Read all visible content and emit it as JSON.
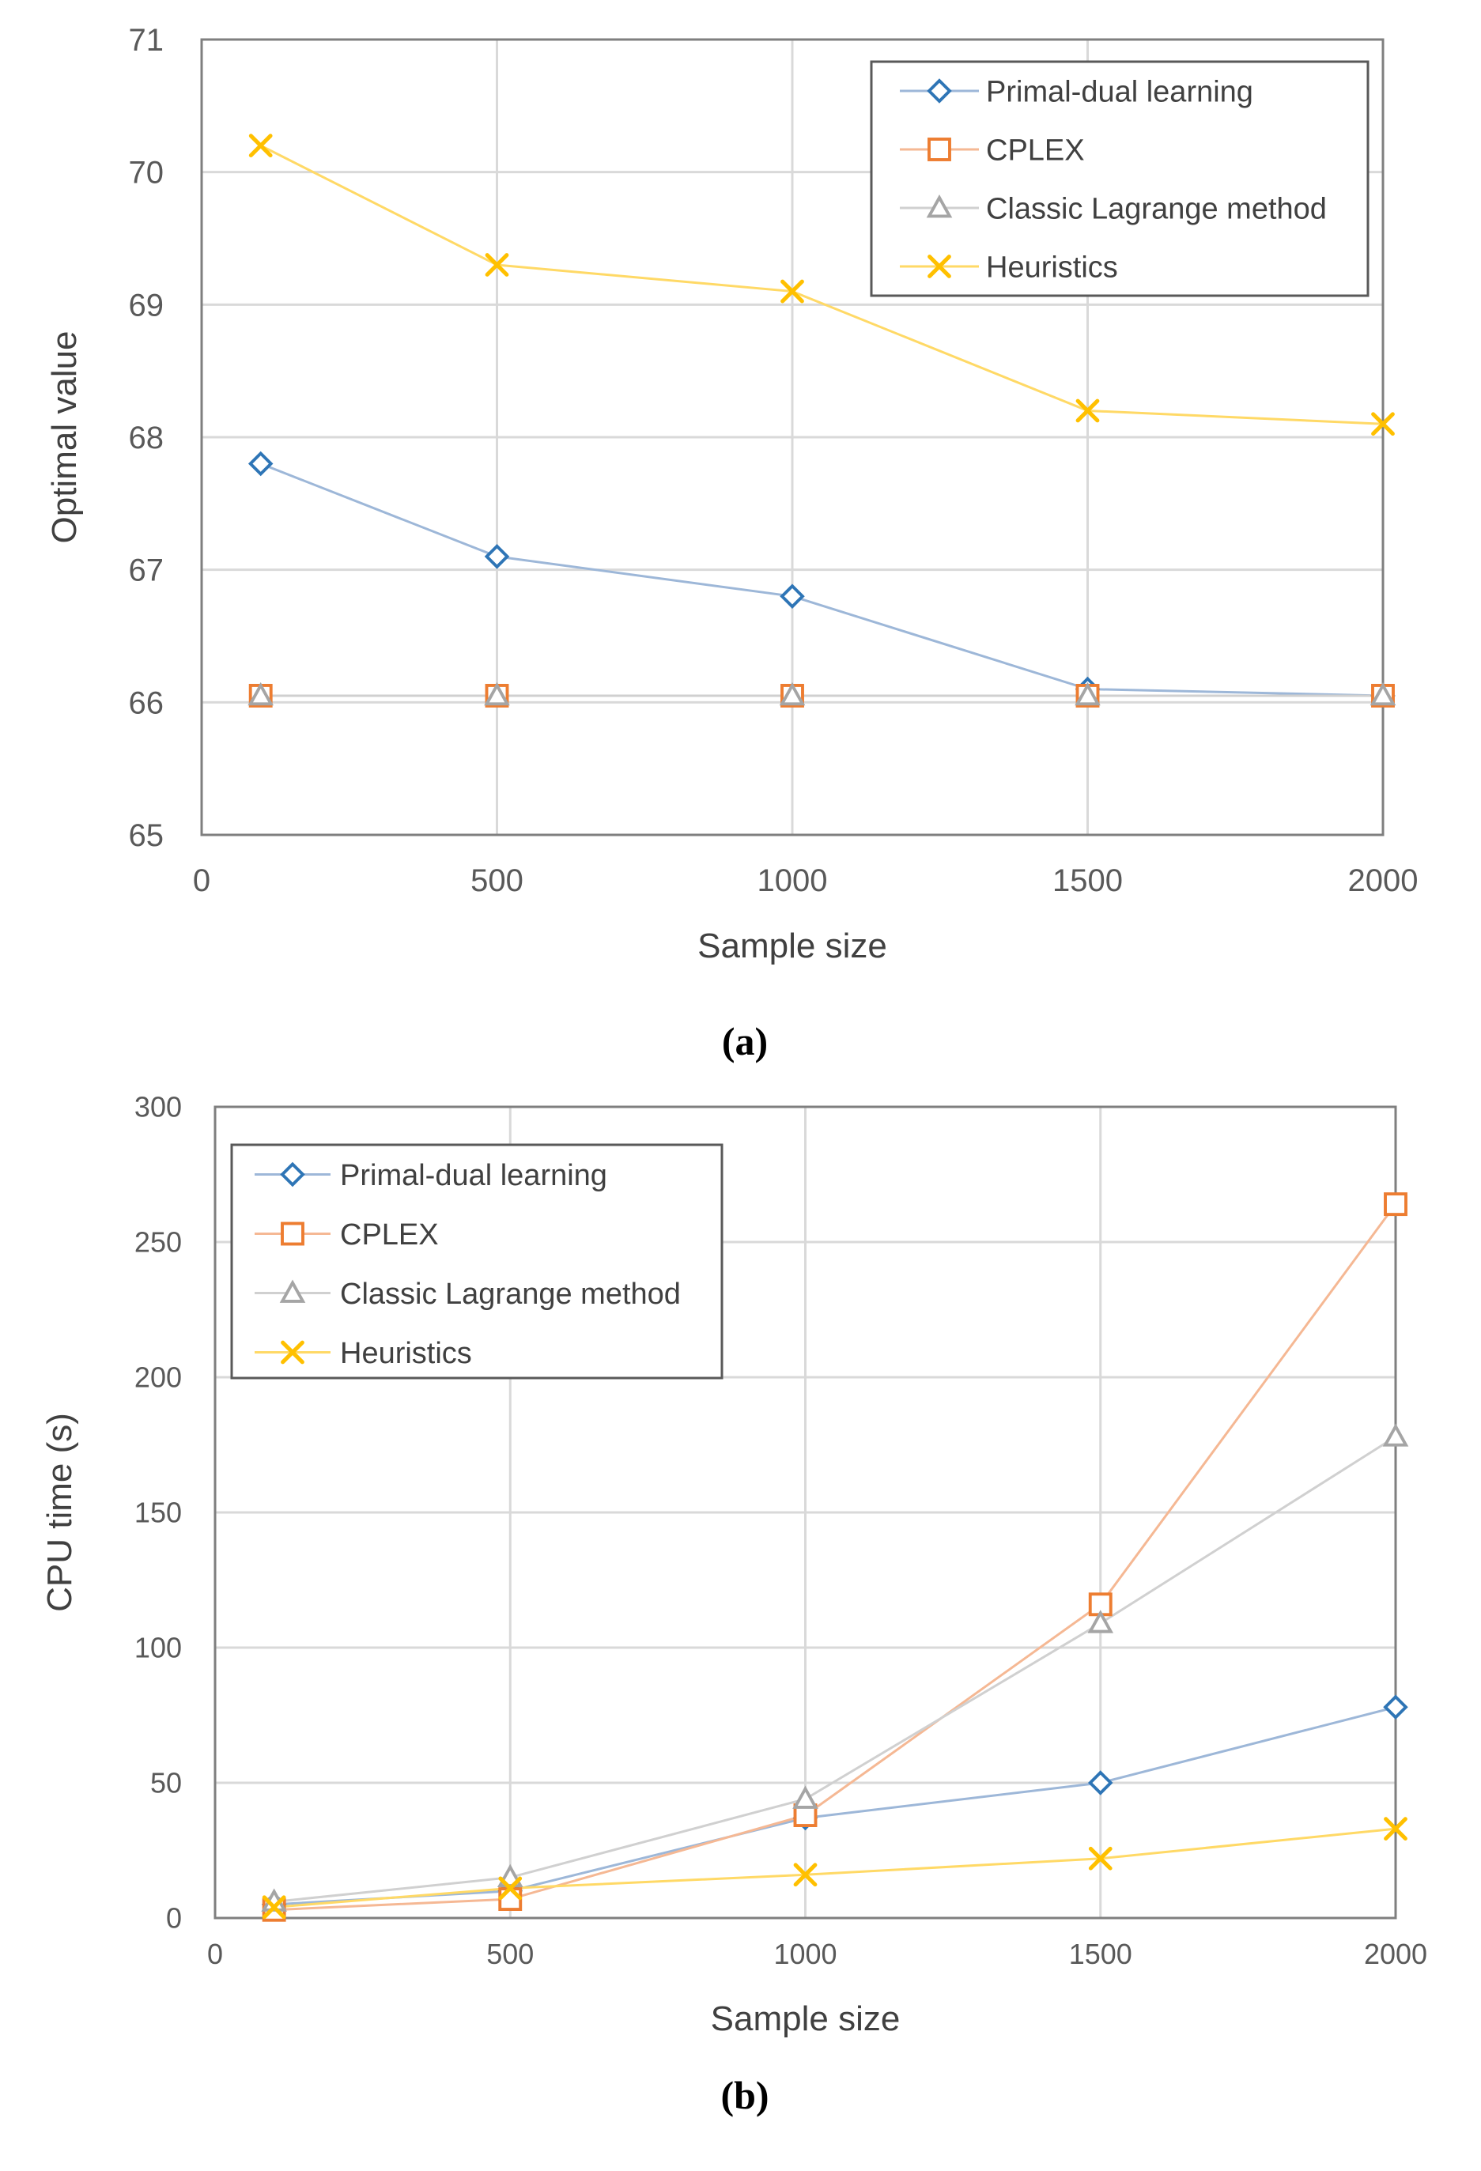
{
  "chart_data": [
    {
      "type": "line",
      "panel_caption": "(a)",
      "title": "",
      "xlabel": "Sample size",
      "ylabel": "Optimal value",
      "xlim": [
        0,
        2000
      ],
      "ylim": [
        65,
        71
      ],
      "x_ticks": [
        "0",
        "500",
        "1000",
        "1500",
        "2000"
      ],
      "y_ticks": [
        "65",
        "66",
        "67",
        "68",
        "69",
        "70",
        "71"
      ],
      "grid": true,
      "legend_position": "top-right",
      "x": [
        100,
        500,
        1000,
        1500,
        2000
      ],
      "series": [
        {
          "name": "Primal-dual learning",
          "color": "#2E75B6",
          "line_color": "#9DB7D8",
          "marker": "diamond",
          "values": [
            67.8,
            67.1,
            66.8,
            66.1,
            66.05
          ]
        },
        {
          "name": "CPLEX",
          "color": "#ED7D31",
          "line_color": "#F5B894",
          "marker": "square",
          "values": [
            66.05,
            66.05,
            66.05,
            66.05,
            66.05
          ]
        },
        {
          "name": "Classic Lagrange method",
          "color": "#A5A5A5",
          "line_color": "#D0D0D0",
          "marker": "triangle",
          "values": [
            66.05,
            66.05,
            66.05,
            66.05,
            66.05
          ]
        },
        {
          "name": "Heuristics",
          "color": "#FFC000",
          "line_color": "#FFD966",
          "marker": "x",
          "values": [
            70.2,
            69.3,
            69.1,
            68.2,
            68.1
          ]
        }
      ]
    },
    {
      "type": "line",
      "panel_caption": "(b)",
      "title": "",
      "xlabel": "Sample size",
      "ylabel": "CPU time (s)",
      "xlim": [
        0,
        2000
      ],
      "ylim": [
        0,
        300
      ],
      "x_ticks": [
        "0",
        "500",
        "1000",
        "1500",
        "2000"
      ],
      "y_ticks": [
        "0",
        "50",
        "100",
        "150",
        "200",
        "250",
        "300"
      ],
      "grid": true,
      "legend_position": "top-left",
      "x": [
        100,
        500,
        1000,
        1500,
        2000
      ],
      "series": [
        {
          "name": "Primal-dual learning",
          "color": "#2E75B6",
          "line_color": "#9DB7D8",
          "marker": "diamond",
          "values": [
            5,
            10,
            37,
            50,
            78
          ]
        },
        {
          "name": "CPLEX",
          "color": "#ED7D31",
          "line_color": "#F5B894",
          "marker": "square",
          "values": [
            3,
            7,
            38,
            116,
            264
          ]
        },
        {
          "name": "Classic Lagrange method",
          "color": "#A5A5A5",
          "line_color": "#D0D0D0",
          "marker": "triangle",
          "values": [
            6,
            15,
            44,
            109,
            178
          ]
        },
        {
          "name": "Heuristics",
          "color": "#FFC000",
          "line_color": "#FFD966",
          "marker": "x",
          "values": [
            4,
            11,
            16,
            22,
            33
          ]
        }
      ]
    }
  ]
}
